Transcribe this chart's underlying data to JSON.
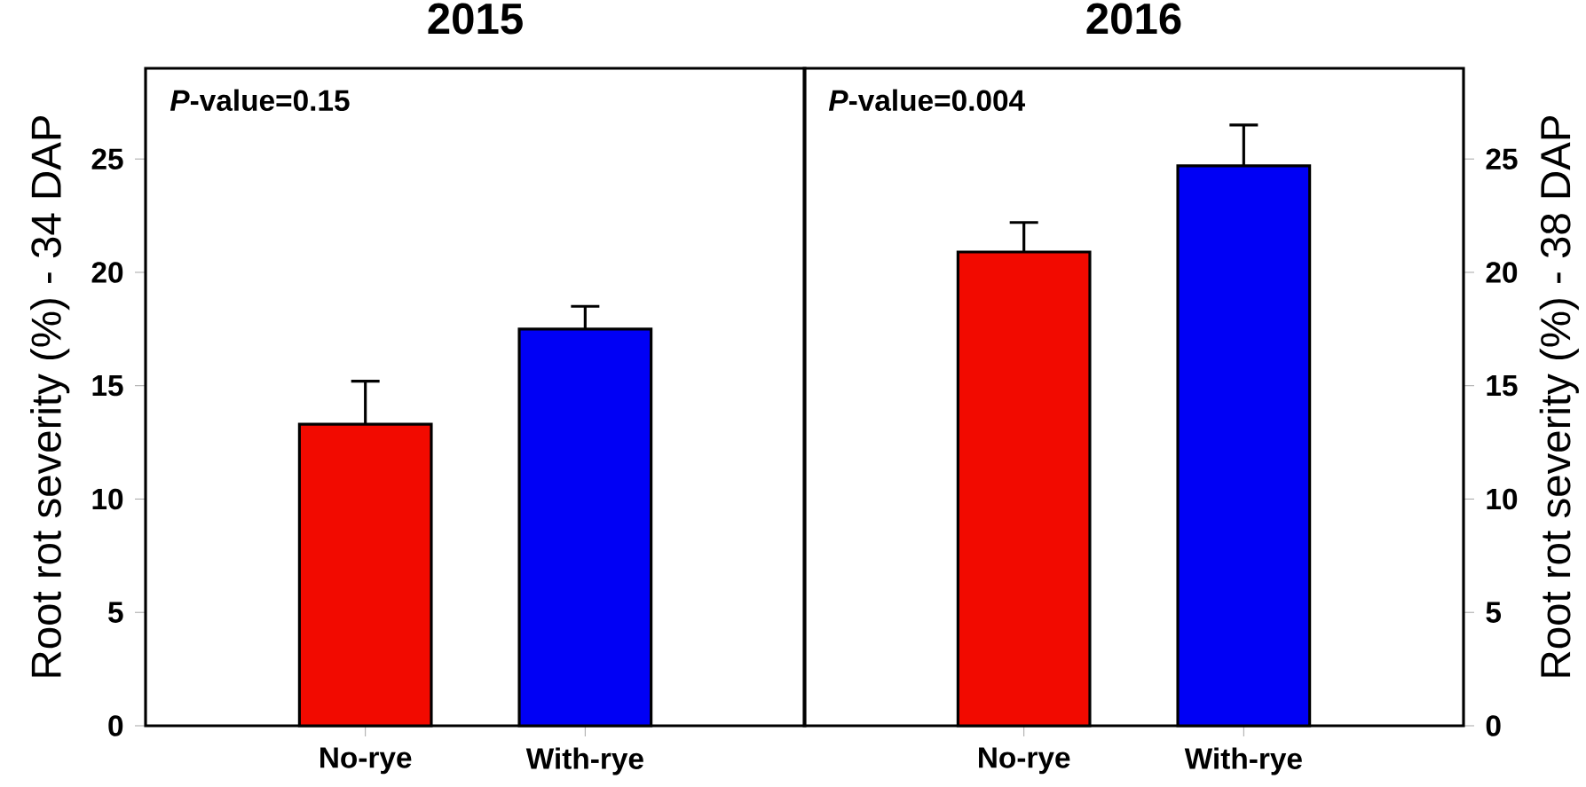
{
  "chart_data": [
    {
      "type": "bar",
      "title": "2015",
      "ylabel": "Root rot severity (%) - 34 DAP",
      "categories": [
        "No-rye",
        "With-rye"
      ],
      "values": [
        13.3,
        17.5
      ],
      "errors": [
        1.9,
        1.0
      ],
      "colors": [
        "#f20a00",
        "#0000f5"
      ],
      "ylim": [
        0,
        29
      ],
      "yticks": [
        0,
        5,
        10,
        15,
        20,
        25
      ],
      "annotations": [
        "*P*-value=0.15"
      ]
    },
    {
      "type": "bar",
      "title": "2016",
      "y2label": "Root rot severity (%) - 38 DAP",
      "categories": [
        "No-rye",
        "With-rye"
      ],
      "colors": [
        "#f20a00",
        "#0000f5"
      ],
      "y2lim": [
        0,
        29
      ],
      "y2ticks": [
        0,
        5,
        10,
        15,
        20,
        25
      ],
      "annotations": [
        "*P*-value=0.004"
      ],
      "series": [
        {
          "axis": "y2",
          "values": [
            20.9,
            24.7
          ],
          "errors": [
            1.3,
            1.8
          ]
        }
      ]
    }
  ]
}
